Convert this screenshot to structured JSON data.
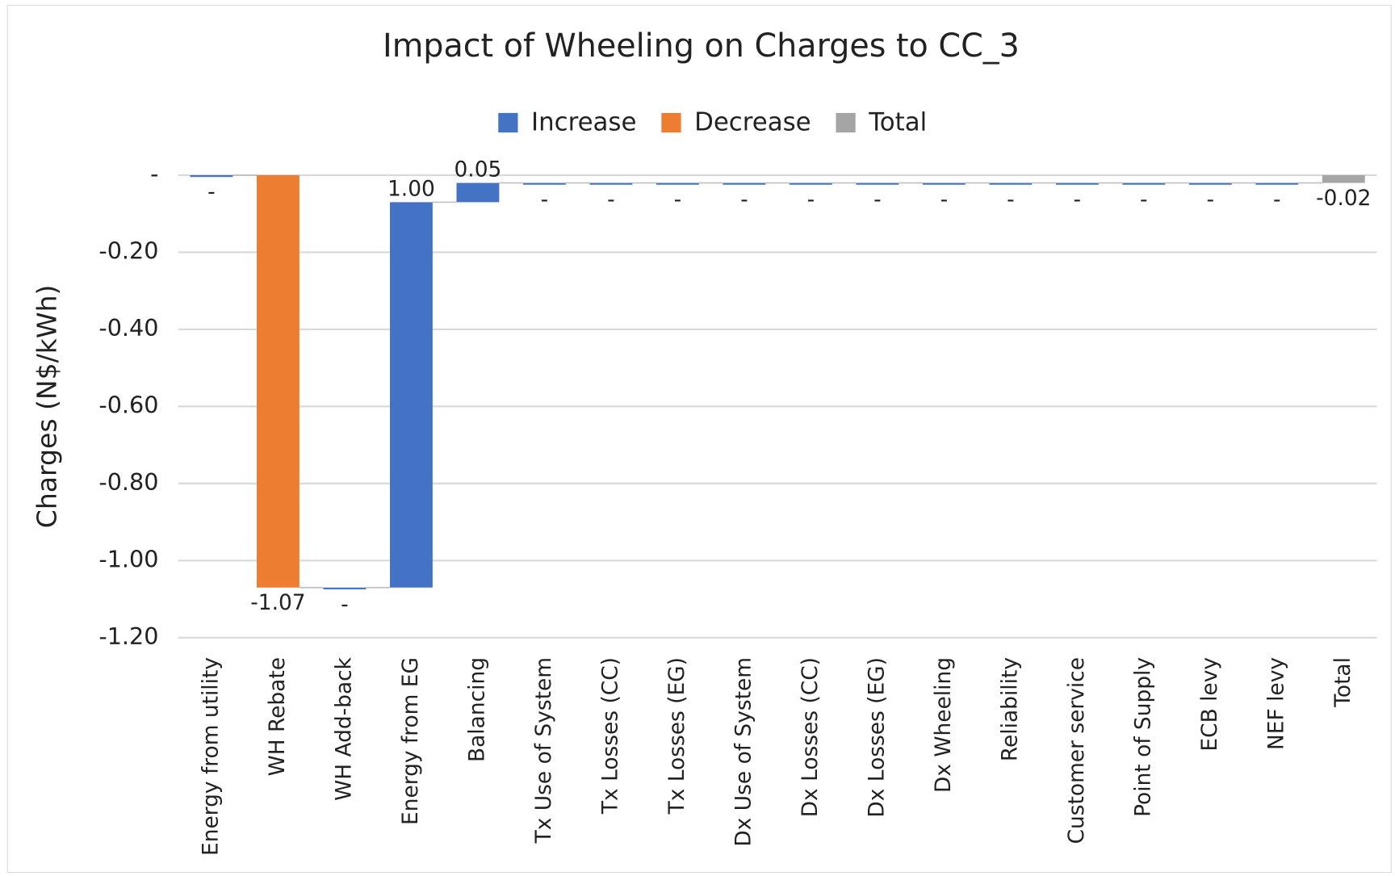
{
  "chart_data": {
    "type": "waterfall",
    "title": "Impact of Wheeling on Charges to CC_3",
    "y_label": "Charges (N$/kWh)",
    "categories": [
      "Energy from utility",
      "WH Rebate",
      "WH Add-back",
      "Energy from EG",
      "Balancing",
      "Tx Use of System",
      "Tx Losses (CC)",
      "Tx Losses (EG)",
      "Dx Use of System",
      "Dx Losses (CC)",
      "Dx Losses (EG)",
      "Dx Wheeling",
      "Reliability",
      "Customer service",
      "Point of Supply",
      "ECB levy",
      "NEF levy",
      "Total"
    ],
    "series": [
      {
        "name": "Increase",
        "color": "#4472c4",
        "values": [
          0,
          null,
          0,
          1.0,
          0.05,
          0,
          0,
          0,
          0,
          0,
          0,
          0,
          0,
          0,
          0,
          0,
          0,
          null
        ],
        "value_labels": [
          "-",
          null,
          "-",
          "1.00",
          "0.05",
          "-",
          "-",
          "-",
          "-",
          "-",
          "-",
          "-",
          "-",
          "-",
          "-",
          "-",
          "-",
          null
        ]
      },
      {
        "name": "Decrease",
        "color": "#ed7d31",
        "values": [
          null,
          -1.07,
          null,
          null,
          null,
          null,
          null,
          null,
          null,
          null,
          null,
          null,
          null,
          null,
          null,
          null,
          null,
          null
        ],
        "value_labels": [
          null,
          "-1.07",
          null,
          null,
          null,
          null,
          null,
          null,
          null,
          null,
          null,
          null,
          null,
          null,
          null,
          null,
          null,
          null
        ]
      },
      {
        "name": "Total",
        "color": "#a5a5a5",
        "values": [
          null,
          null,
          null,
          null,
          null,
          null,
          null,
          null,
          null,
          null,
          null,
          null,
          null,
          null,
          null,
          null,
          null,
          -0.02
        ],
        "value_labels": [
          null,
          null,
          null,
          null,
          null,
          null,
          null,
          null,
          null,
          null,
          null,
          null,
          null,
          null,
          null,
          null,
          null,
          "-0.02"
        ]
      }
    ],
    "ylim": [
      -1.2,
      0
    ],
    "yticks": [
      {
        "value": 0,
        "label": "-"
      },
      {
        "value": -0.2,
        "label": "-0.20"
      },
      {
        "value": -0.4,
        "label": "-0.40"
      },
      {
        "value": -0.6,
        "label": "-0.60"
      },
      {
        "value": -0.8,
        "label": "-0.80"
      },
      {
        "value": -1.0,
        "label": "-1.00"
      },
      {
        "value": -1.2,
        "label": "-1.20"
      }
    ],
    "grid": true,
    "legend": "top"
  }
}
